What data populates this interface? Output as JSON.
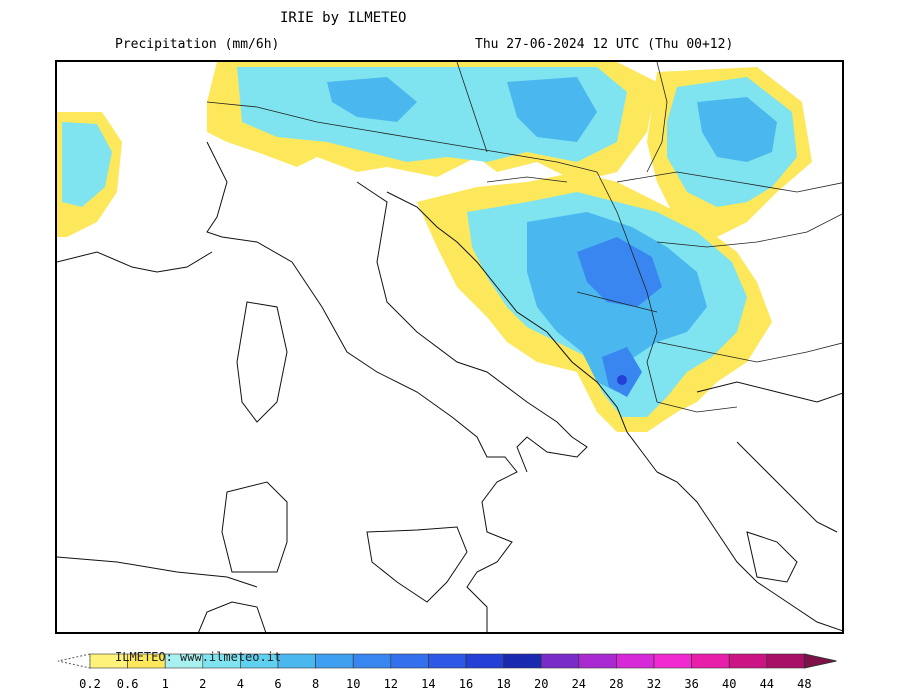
{
  "header": {
    "title": "IRIE by ILMETEO",
    "field": "Precipitation (mm/6h)",
    "valid_time": "Thu 27-06-2024 12 UTC (Thu 00+12)"
  },
  "legend": {
    "watermark": "ILMETEO: www.ilmeteo.it",
    "classes": [
      {
        "label": "0.2",
        "color": "#fff27a"
      },
      {
        "label": "0.6",
        "color": "#fce85a"
      },
      {
        "label": "1",
        "color": "#a9f0f0"
      },
      {
        "label": "2",
        "color": "#7fe4ef"
      },
      {
        "label": "4",
        "color": "#5fd0ef"
      },
      {
        "label": "6",
        "color": "#4ab8ee"
      },
      {
        "label": "8",
        "color": "#3f9ff0"
      },
      {
        "label": "10",
        "color": "#3a86f0"
      },
      {
        "label": "12",
        "color": "#3370ee"
      },
      {
        "label": "14",
        "color": "#2d57e6"
      },
      {
        "label": "16",
        "color": "#2440d6"
      },
      {
        "label": "18",
        "color": "#1a2ab0"
      },
      {
        "label": "20",
        "color": "#7a2cc8"
      },
      {
        "label": "24",
        "color": "#a82ad0"
      },
      {
        "label": "28",
        "color": "#d62ad8"
      },
      {
        "label": "32",
        "color": "#f02ad0"
      },
      {
        "label": "36",
        "color": "#e81fa8"
      },
      {
        "label": "40",
        "color": "#cc1584"
      },
      {
        "label": "44",
        "color": "#a80f66"
      },
      {
        "label": "48",
        "color": "#801048"
      }
    ]
  }
}
